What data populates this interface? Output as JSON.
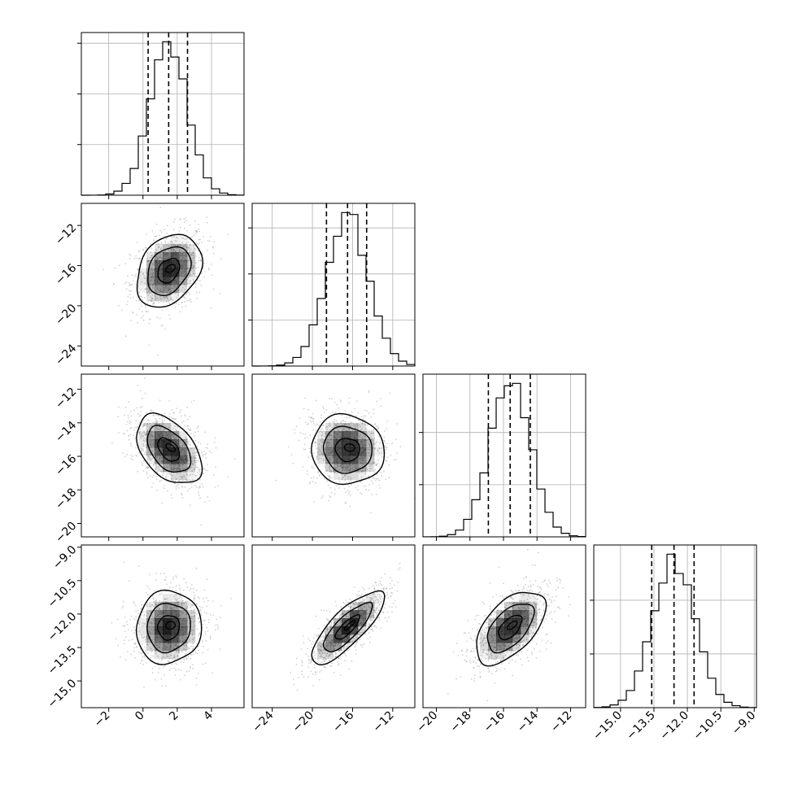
{
  "figure": {
    "type": "corner_plot",
    "background": "#ffffff"
  },
  "chart_data": {
    "type": "corner",
    "grid": true,
    "colors": {
      "frame": "#000000",
      "grid": "#b0b0b0",
      "points": "#9a9a9a",
      "contour": "#000000",
      "density_fill": "#000000"
    },
    "parameters": [
      {
        "range": [
          -3.6,
          5.9
        ],
        "ticks": [
          -2,
          0,
          2,
          4
        ],
        "tick_labels": [
          "−2",
          "0",
          "2",
          "4"
        ],
        "mean": 1.5,
        "sd": 1.1,
        "quantiles": [
          0.3,
          1.5,
          2.6
        ],
        "hist_yticks": [
          0.33,
          0.66,
          0.99
        ]
      },
      {
        "range": [
          -26.0,
          -9.8
        ],
        "ticks": [
          -24,
          -20,
          -16,
          -12
        ],
        "tick_labels": [
          "−24",
          "−20",
          "−16",
          "−12"
        ],
        "mean": -16.5,
        "sd": 2.1,
        "quantiles": [
          -18.6,
          -16.5,
          -14.6
        ],
        "hist_yticks": [
          0.3,
          0.6,
          0.9
        ]
      },
      {
        "range": [
          -20.8,
          -11.1
        ],
        "ticks": [
          -20,
          -18,
          -16,
          -14,
          -12
        ],
        "tick_labels": [
          "−20",
          "−18",
          "−16",
          "−14",
          "−12"
        ],
        "mean": -15.6,
        "sd": 1.2,
        "quantiles": [
          -16.9,
          -15.6,
          -14.4
        ],
        "hist_yticks": [
          0.34,
          0.68
        ]
      },
      {
        "range": [
          -16.2,
          -8.9
        ],
        "ticks": [
          -15.0,
          -13.5,
          -12.0,
          -10.5,
          -9.0
        ],
        "tick_labels": [
          "−15.0",
          "−13.5",
          "−12.0",
          "−10.5",
          "−9.0"
        ],
        "mean": -12.6,
        "sd": 0.95,
        "quantiles": [
          -13.6,
          -12.6,
          -11.7
        ],
        "hist_yticks": [
          0.35,
          0.7
        ]
      }
    ],
    "correlations": [
      {
        "pair": [
          0,
          1
        ],
        "rho": 0.3
      },
      {
        "pair": [
          0,
          2
        ],
        "rho": -0.45
      },
      {
        "pair": [
          1,
          2
        ],
        "rho": -0.05
      },
      {
        "pair": [
          0,
          3
        ],
        "rho": 0.05
      },
      {
        "pair": [
          1,
          3
        ],
        "rho": 0.8
      },
      {
        "pair": [
          2,
          3
        ],
        "rho": 0.55
      }
    ],
    "contour_levels": [
      0.5,
      1.0,
      1.5
    ]
  }
}
